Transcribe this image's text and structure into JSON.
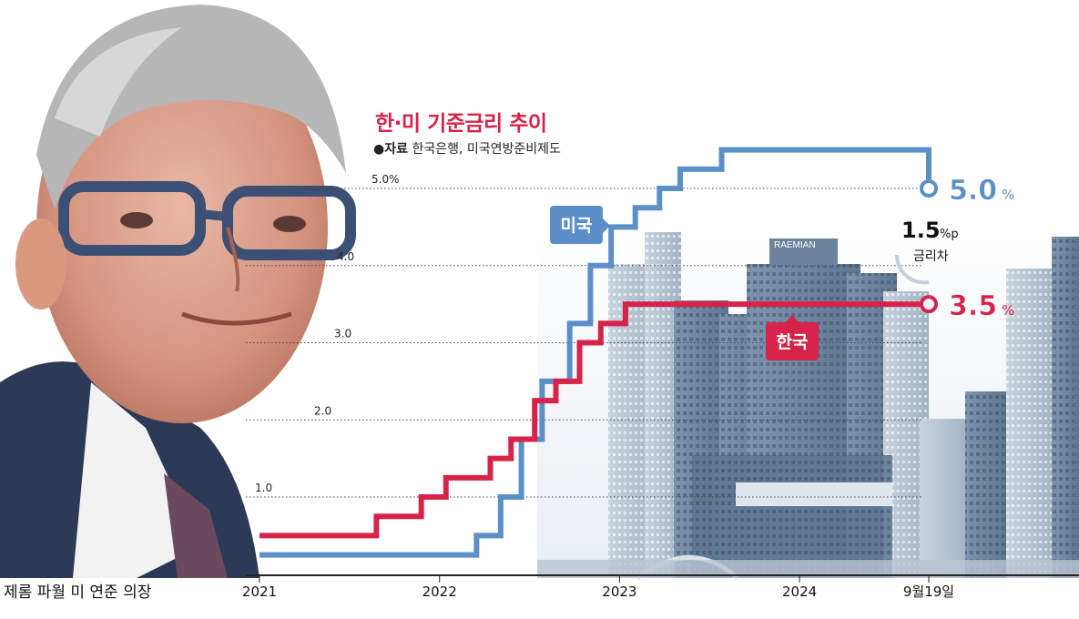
{
  "chart_data": {
    "type": "line",
    "step": true,
    "title": "한·미 기준금리 추이",
    "source_label": "●자료",
    "source": "한국은행, 미국연방준비제도",
    "ylim": [
      0,
      5.4
    ],
    "y_ticks": [
      "1.0",
      "2.0",
      "3.0",
      "4.0",
      "5.0%"
    ],
    "y_tick_values": [
      1.0,
      2.0,
      3.0,
      4.0,
      5.0
    ],
    "x_ticks": [
      "2021",
      "2022",
      "2023",
      "2024",
      "9월19일"
    ],
    "x_tick_values": [
      "2021-01-01",
      "2022-01-01",
      "2023-01-01",
      "2024-01-01",
      "2024-09-19"
    ],
    "grid": "dotted horizontal",
    "series": [
      {
        "name": "미국",
        "color": "#5b8fc9",
        "end_label": "5.0",
        "end_unit": "%",
        "x": [
          "2021-01-01",
          "2022-03-17",
          "2022-05-05",
          "2022-06-16",
          "2022-07-28",
          "2022-09-22",
          "2022-11-03",
          "2022-12-15",
          "2023-02-02",
          "2023-03-23",
          "2023-05-04",
          "2023-07-27",
          "2024-09-19"
        ],
        "values": [
          0.25,
          0.5,
          1.0,
          1.75,
          2.5,
          3.25,
          4.0,
          4.5,
          4.75,
          5.0,
          5.25,
          5.5,
          5.0
        ]
      },
      {
        "name": "한국",
        "color": "#d7234a",
        "end_label": "3.5",
        "end_unit": "%",
        "x": [
          "2021-01-01",
          "2021-08-26",
          "2021-11-25",
          "2022-01-14",
          "2022-04-14",
          "2022-05-26",
          "2022-07-13",
          "2022-08-25",
          "2022-10-12",
          "2022-11-24",
          "2023-01-13",
          "2024-09-19"
        ],
        "values": [
          0.5,
          0.75,
          1.0,
          1.25,
          1.5,
          1.75,
          2.25,
          2.5,
          3.0,
          3.25,
          3.5,
          3.5
        ]
      }
    ],
    "annotations": {
      "gap_value": "1.5",
      "gap_unit": "%p",
      "gap_label": "금리차"
    }
  },
  "caption": "제롬 파월 미 연준 의장",
  "building_sign": "RAEMIAN"
}
